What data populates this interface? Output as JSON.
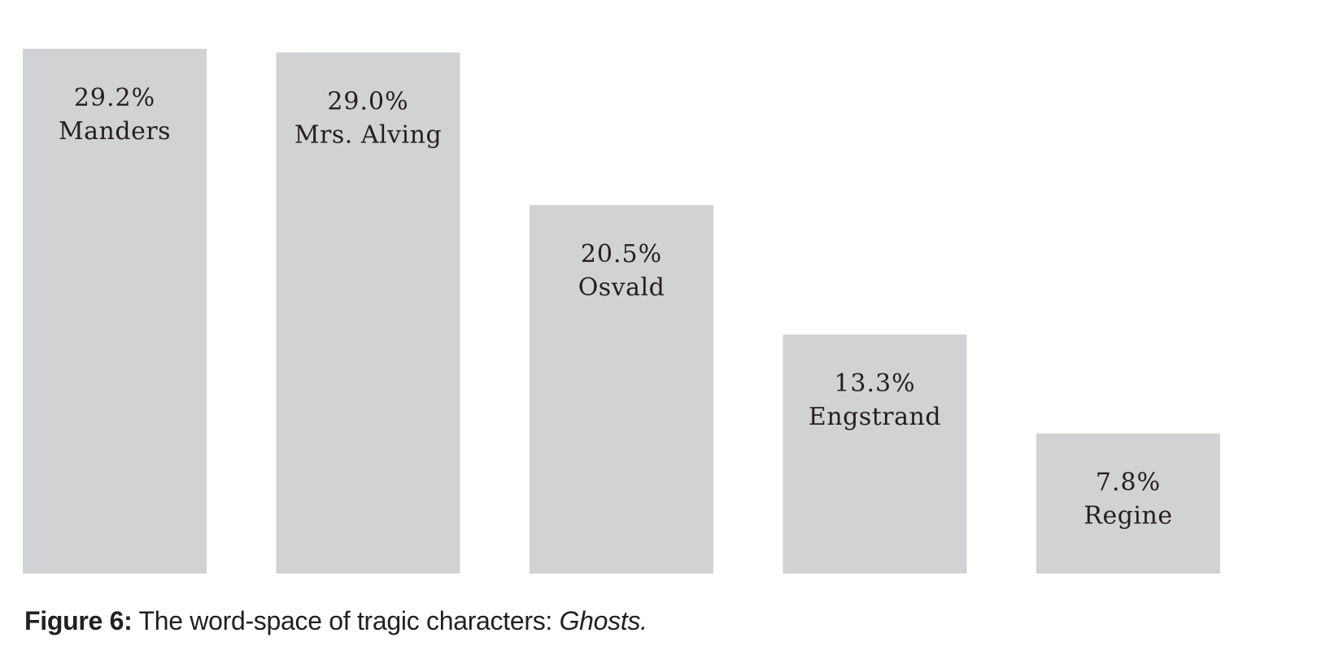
{
  "chart_data": {
    "type": "bar",
    "categories": [
      "Manders",
      "Mrs. Alving",
      "Osvald",
      "Engstrand",
      "Regine"
    ],
    "values": [
      29.2,
      29.0,
      20.5,
      13.3,
      7.8
    ],
    "value_labels": [
      "29.2%",
      "29.0%",
      "20.5%",
      "13.3%",
      "7.8%"
    ],
    "title": "",
    "xlabel": "",
    "ylabel": "",
    "ylim": [
      0,
      29.2
    ],
    "grid": false,
    "legend": "none",
    "bar_color": "#d1d2d4",
    "text_color": "#231f20"
  },
  "caption": {
    "label": "Figure 6:",
    "text": " The word-space of tragic characters: ",
    "italic": "Ghosts."
  }
}
